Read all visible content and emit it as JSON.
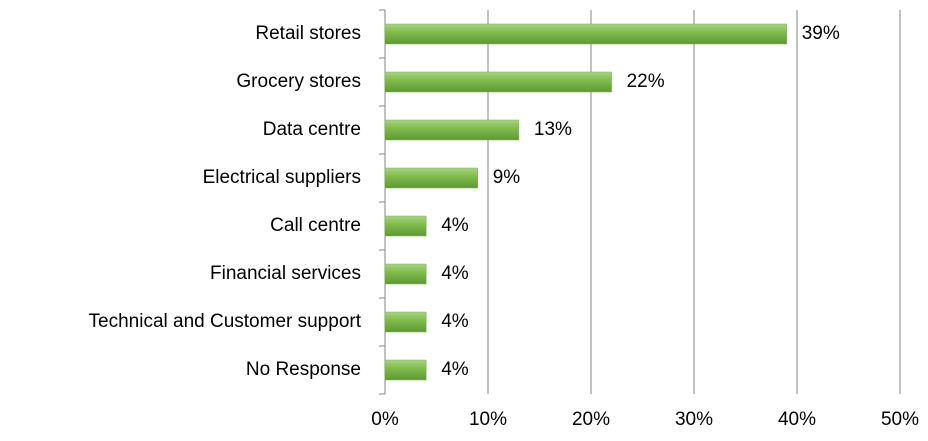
{
  "chart_data": {
    "type": "barh",
    "categories": [
      "Retail stores",
      "Grocery stores",
      "Data centre",
      "Electrical suppliers",
      "Call centre",
      "Financial services",
      "Technical and Customer support",
      "No Response"
    ],
    "values": [
      39,
      22,
      13,
      9,
      4,
      4,
      4,
      4
    ],
    "value_labels": [
      "39%",
      "22%",
      "13%",
      "9%",
      "4%",
      "4%",
      "4%",
      "4%"
    ],
    "color": "#7ab648",
    "xlim": [
      0,
      50
    ],
    "xticks": [
      {
        "value": 0,
        "label": "0%"
      },
      {
        "value": 10,
        "label": "10%"
      },
      {
        "value": 20,
        "label": "20%"
      },
      {
        "value": 30,
        "label": "30%"
      },
      {
        "value": 40,
        "label": "40%"
      },
      {
        "value": 50,
        "label": "50%"
      }
    ],
    "grid": true
  }
}
